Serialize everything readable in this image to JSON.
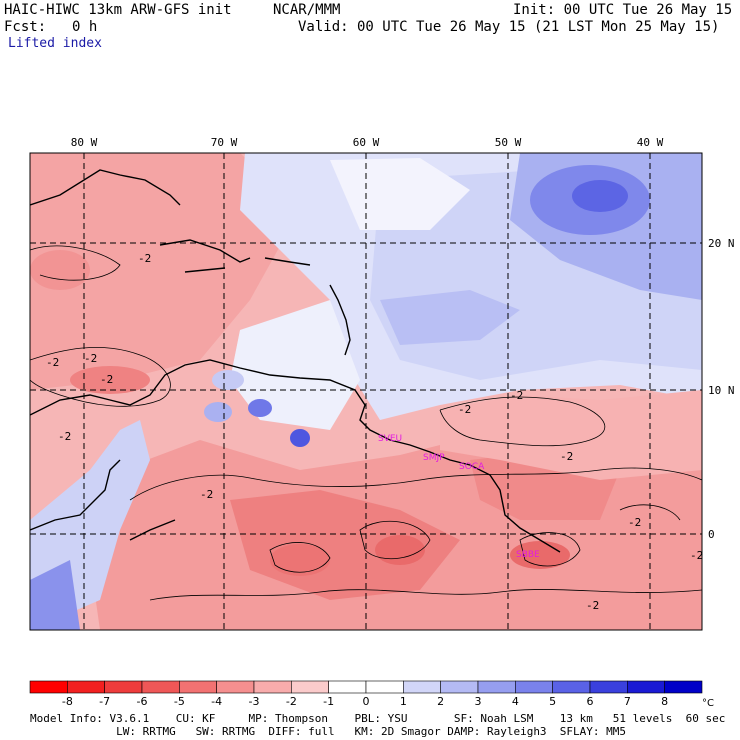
{
  "header": {
    "model": "HAIC-HIWC 13km ARW-GFS init",
    "org": "NCAR/MMM",
    "init": "Init: 00 UTC Tue 26 May 15",
    "fcst_label": "Fcst:",
    "fcst_value": "0 h",
    "valid": "Valid: 00 UTC Tue 26 May 15 (21 LST Mon 25 May 15)",
    "field": "Lifted index"
  },
  "map": {
    "lon_labels": [
      "80 W",
      "70 W",
      "60 W",
      "50 W",
      "40 W"
    ],
    "lat_labels": [
      "20 N",
      "10 N",
      "0"
    ],
    "contour_labels": [
      "-2",
      "-2",
      "-2",
      "-2",
      "-2",
      "-2",
      "-2",
      "-2",
      "-2",
      "-2",
      "-2",
      "-2"
    ],
    "stations": [
      "SVEU",
      "SMJP",
      "SOCA",
      "SBBE"
    ],
    "colors": {
      "station": "#e31ce0",
      "contour": "#000000",
      "grid": "#000000"
    }
  },
  "colorbar": {
    "levels": [
      "-8",
      "-7",
      "-6",
      "-5",
      "-4",
      "-3",
      "-2",
      "-1",
      "0",
      "1",
      "2",
      "3",
      "4",
      "5",
      "6",
      "7",
      "8"
    ],
    "unit": "°C",
    "colors": [
      "#ff0000",
      "#f22020",
      "#ee3c3c",
      "#ef5757",
      "#f27272",
      "#f58f8f",
      "#f8acac",
      "#fbcbcb",
      "#ffffff",
      "#ffffff",
      "#d2d6f8",
      "#b4baf4",
      "#969ef0",
      "#7a82ec",
      "#5a62e6",
      "#3a40dd",
      "#1a1ad4",
      "#0000c8"
    ]
  },
  "footer": {
    "line1": "Model Info: V3.6.1    CU: KF     MP: Thompson    PBL: YSU       SF: Noah LSM    13 km   51 levels  60 sec",
    "line2": "             LW: RRTMG   SW: RRTMG  DIFF: full   KM: 2D Smagor DAMP: Rayleigh3  SFLAY: MM5"
  }
}
